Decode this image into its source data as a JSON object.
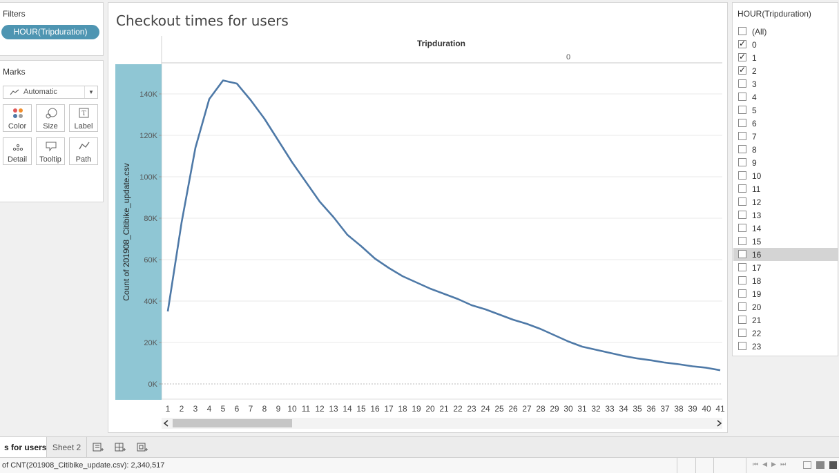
{
  "filters": {
    "title": "Filters",
    "pill": "HOUR(Tripduration)"
  },
  "marks": {
    "title": "Marks",
    "type": "Automatic",
    "buttons": [
      {
        "label": "Color",
        "icon": "color-dots-icon"
      },
      {
        "label": "Size",
        "icon": "size-icon"
      },
      {
        "label": "Label",
        "icon": "label-icon"
      },
      {
        "label": "Detail",
        "icon": "detail-icon"
      },
      {
        "label": "Tooltip",
        "icon": "tooltip-icon"
      },
      {
        "label": "Path",
        "icon": "path-icon"
      }
    ]
  },
  "sheet": {
    "title": "Checkout times for users"
  },
  "chart_data": {
    "type": "line",
    "column_header": "Tripduration",
    "column_value": "0",
    "ylabel": "Count of 201908_Citibike_update.csv",
    "yticks": [
      "0K",
      "20K",
      "40K",
      "60K",
      "80K",
      "100K",
      "120K",
      "140K"
    ],
    "ylim": [
      0,
      150000
    ],
    "x": [
      1,
      2,
      3,
      4,
      5,
      6,
      7,
      8,
      9,
      10,
      11,
      12,
      13,
      14,
      15,
      16,
      17,
      18,
      19,
      20,
      21,
      22,
      23,
      24,
      25,
      26,
      27,
      28,
      29,
      30,
      31,
      32,
      33,
      34,
      35,
      36,
      37,
      38,
      39,
      40,
      41
    ],
    "x_tick_labels": [
      "1",
      "2",
      "3",
      "4",
      "5",
      "6",
      "7",
      "8",
      "9",
      "10",
      "11",
      "12",
      "13",
      "14",
      "15",
      "16",
      "17",
      "18",
      "19",
      "20",
      "21",
      "22",
      "23",
      "24",
      "25",
      "26",
      "27",
      "28",
      "29",
      "30",
      "31",
      "32",
      "33",
      "34",
      "35",
      "36",
      "37",
      "38",
      "39",
      "40",
      "41"
    ],
    "series": [
      {
        "values": [
          35000,
          78000,
          114000,
          137500,
          146500,
          145000,
          137000,
          128000,
          117500,
          107000,
          97500,
          88000,
          80500,
          72000,
          66500,
          60500,
          56000,
          52000,
          49000,
          46000,
          43500,
          41000,
          38000,
          36000,
          33500,
          31000,
          29000,
          26500,
          23500,
          20500,
          18000,
          16500,
          15000,
          13500,
          12300,
          11400,
          10300,
          9500,
          8500,
          7800,
          6600
        ]
      }
    ],
    "line_color": "#4e79a7",
    "header_color": "#8fc6d4",
    "grid": true
  },
  "filter_card": {
    "title": "HOUR(Tripduration)",
    "options": [
      {
        "label": "(All)",
        "checked": false
      },
      {
        "label": "0",
        "checked": true
      },
      {
        "label": "1",
        "checked": true
      },
      {
        "label": "2",
        "checked": true
      },
      {
        "label": "3",
        "checked": false
      },
      {
        "label": "4",
        "checked": false
      },
      {
        "label": "5",
        "checked": false
      },
      {
        "label": "6",
        "checked": false
      },
      {
        "label": "7",
        "checked": false
      },
      {
        "label": "8",
        "checked": false
      },
      {
        "label": "9",
        "checked": false
      },
      {
        "label": "10",
        "checked": false
      },
      {
        "label": "11",
        "checked": false
      },
      {
        "label": "12",
        "checked": false
      },
      {
        "label": "13",
        "checked": false
      },
      {
        "label": "14",
        "checked": false
      },
      {
        "label": "15",
        "checked": false
      },
      {
        "label": "16",
        "checked": false,
        "highlight": true
      },
      {
        "label": "17",
        "checked": false
      },
      {
        "label": "18",
        "checked": false
      },
      {
        "label": "19",
        "checked": false
      },
      {
        "label": "20",
        "checked": false
      },
      {
        "label": "21",
        "checked": false
      },
      {
        "label": "22",
        "checked": false
      },
      {
        "label": "23",
        "checked": false
      }
    ]
  },
  "tabs": {
    "active": "s for users",
    "other": "Sheet 2"
  },
  "status": {
    "text": "of CNT(201908_Citibike_update.csv): 2,340,517"
  }
}
